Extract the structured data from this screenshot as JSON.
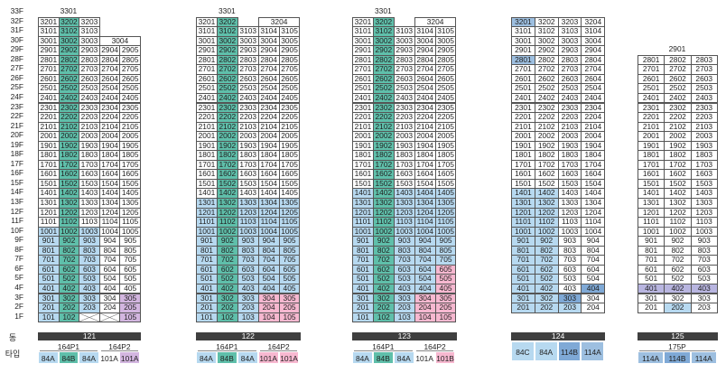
{
  "floors": [
    "33F",
    "32F",
    "31F",
    "30F",
    "29F",
    "28F",
    "27F",
    "26F",
    "25F",
    "24F",
    "23F",
    "22F",
    "21F",
    "20F",
    "19F",
    "18F",
    "17F",
    "16F",
    "15F",
    "14F",
    "13F",
    "12F",
    "11F",
    "10F",
    "9F",
    "8F",
    "7F",
    "6F",
    "5F",
    "4F",
    "3F",
    "2F",
    "1F"
  ],
  "labels": {
    "dong": "동",
    "type": "타입"
  },
  "colors": {
    "teal": "#5fbfaa",
    "lightblue": "#b7d9f0",
    "midblue": "#9dbfe0",
    "pink": "#f7b8d0",
    "purple": "#d3b6e0",
    "steelblue": "#7fa9d6",
    "lavender": "#b8b5e0"
  },
  "buildings": [
    {
      "dong": "121",
      "top_floor": "33F",
      "penthouse": "3301",
      "types": [
        {
          "group": "164P1",
          "cells": [
            {
              "t": "84A",
              "c": "lightblue"
            },
            {
              "t": "84B",
              "c": "teal"
            },
            {
              "t": "84A",
              "c": "lightblue"
            }
          ]
        },
        {
          "group": "164P2",
          "cells": [
            {
              "t": "101A",
              "c": "white"
            },
            {
              "t": "101A",
              "c": "purple"
            }
          ]
        }
      ],
      "rows": [
        [
          "3201",
          "3202",
          "3203"
        ],
        [
          "3101",
          "3102",
          "3103"
        ],
        [
          "3001",
          "3002",
          "3003",
          "3004"
        ],
        [
          "2901",
          "2902",
          "2903",
          "2904",
          "2905"
        ],
        [
          "2801",
          "2802",
          "2803",
          "2804",
          "2805"
        ],
        [
          "2701",
          "2702",
          "2703",
          "2704",
          "2705"
        ],
        [
          "2601",
          "2602",
          "2603",
          "2604",
          "2605"
        ],
        [
          "2501",
          "2502",
          "2503",
          "2504",
          "2505"
        ],
        [
          "2401",
          "2402",
          "2403",
          "2404",
          "2405"
        ],
        [
          "2301",
          "2302",
          "2303",
          "2304",
          "2305"
        ],
        [
          "2201",
          "2202",
          "2203",
          "2204",
          "2205"
        ],
        [
          "2101",
          "2102",
          "2103",
          "2104",
          "2105"
        ],
        [
          "2001",
          "2002",
          "2003",
          "2004",
          "2005"
        ],
        [
          "1901",
          "1902",
          "1903",
          "1904",
          "1905"
        ],
        [
          "1801",
          "1802",
          "1803",
          "1804",
          "1805"
        ],
        [
          "1701",
          "1702",
          "1703",
          "1704",
          "1705"
        ],
        [
          "1601",
          "1602",
          "1603",
          "1604",
          "1605"
        ],
        [
          "1501",
          "1502",
          "1503",
          "1504",
          "1505"
        ],
        [
          "1401",
          "1402",
          "1403",
          "1404",
          "1405"
        ],
        [
          "1301",
          "1302",
          "1303",
          "1304",
          "1305"
        ],
        [
          "1201",
          "1202",
          "1203",
          "1204",
          "1205"
        ],
        [
          "1101",
          "1102",
          "1103",
          "1104",
          "1105"
        ],
        [
          "1001",
          "1002",
          "1003",
          "1004",
          "1005"
        ],
        [
          "901",
          "902",
          "903",
          "904",
          "905"
        ],
        [
          "801",
          "802",
          "803",
          "804",
          "805"
        ],
        [
          "701",
          "702",
          "703",
          "704",
          "705"
        ],
        [
          "601",
          "602",
          "603",
          "604",
          "605"
        ],
        [
          "501",
          "502",
          "503",
          "504",
          "505"
        ],
        [
          "401",
          "402",
          "403",
          "404",
          "405"
        ],
        [
          "301",
          "302",
          "303",
          "304",
          "305"
        ],
        [
          "201",
          "202",
          "203",
          "204",
          "205"
        ],
        [
          "101",
          "102",
          "",
          "",
          "105"
        ]
      ]
    },
    {
      "dong": "122",
      "top_floor": "33F",
      "penthouse": "3301",
      "types": [
        {
          "group": "164P1",
          "cells": [
            {
              "t": "84A",
              "c": "lightblue"
            },
            {
              "t": "84B",
              "c": "teal"
            },
            {
              "t": "84A",
              "c": "lightblue"
            }
          ]
        },
        {
          "group": "164P2",
          "cells": [
            {
              "t": "101A",
              "c": "pink"
            },
            {
              "t": "101A",
              "c": "pink"
            }
          ]
        }
      ],
      "rows": [
        [
          "3201",
          "3202",
          "3204"
        ],
        [
          "3101",
          "3102",
          "3103",
          "3104",
          "3105"
        ],
        [
          "3001",
          "3002",
          "3003",
          "3004",
          "3005"
        ],
        [
          "2901",
          "2902",
          "2903",
          "2904",
          "2905"
        ],
        [
          "2801",
          "2802",
          "2803",
          "2804",
          "2805"
        ],
        [
          "2701",
          "2702",
          "2703",
          "2704",
          "2705"
        ],
        [
          "2601",
          "2602",
          "2603",
          "2604",
          "2605"
        ],
        [
          "2501",
          "2502",
          "2503",
          "2504",
          "2505"
        ],
        [
          "2401",
          "2402",
          "2403",
          "2404",
          "2405"
        ],
        [
          "2301",
          "2302",
          "2303",
          "2304",
          "2305"
        ],
        [
          "2201",
          "2202",
          "2203",
          "2204",
          "2205"
        ],
        [
          "2101",
          "2102",
          "2103",
          "2104",
          "2105"
        ],
        [
          "2001",
          "2002",
          "2003",
          "2004",
          "2005"
        ],
        [
          "1901",
          "1902",
          "1903",
          "1904",
          "1905"
        ],
        [
          "1801",
          "1802",
          "1803",
          "1804",
          "1805"
        ],
        [
          "1701",
          "1702",
          "1703",
          "1704",
          "1705"
        ],
        [
          "1601",
          "1602",
          "1603",
          "1604",
          "1605"
        ],
        [
          "1501",
          "1502",
          "1503",
          "1504",
          "1505"
        ],
        [
          "1401",
          "1402",
          "1403",
          "1404",
          "1405"
        ],
        [
          "1301",
          "1302",
          "1303",
          "1304",
          "1305"
        ],
        [
          "1201",
          "1202",
          "1203",
          "1204",
          "1205"
        ],
        [
          "1101",
          "1102",
          "1103",
          "1104",
          "1105"
        ],
        [
          "1001",
          "1002",
          "1003",
          "1004",
          "1005"
        ],
        [
          "901",
          "902",
          "903",
          "904",
          "905"
        ],
        [
          "801",
          "802",
          "803",
          "804",
          "805"
        ],
        [
          "701",
          "702",
          "703",
          "704",
          "705"
        ],
        [
          "601",
          "602",
          "603",
          "604",
          "605"
        ],
        [
          "501",
          "502",
          "503",
          "504",
          "505"
        ],
        [
          "401",
          "402",
          "403",
          "404",
          "405"
        ],
        [
          "301",
          "302",
          "303",
          "304",
          "305"
        ],
        [
          "201",
          "202",
          "203",
          "204",
          "205"
        ],
        [
          "101",
          "102",
          "103",
          "104",
          "105"
        ]
      ]
    },
    {
      "dong": "123",
      "top_floor": "33F",
      "penthouse": "3301",
      "types": [
        {
          "group": "164P1",
          "cells": [
            {
              "t": "84A",
              "c": "lightblue"
            },
            {
              "t": "84B",
              "c": "teal"
            },
            {
              "t": "84A",
              "c": "lightblue"
            }
          ]
        },
        {
          "group": "164P2",
          "cells": [
            {
              "t": "101A",
              "c": "white"
            },
            {
              "t": "101B",
              "c": "pink"
            }
          ]
        }
      ],
      "rows": [
        [
          "3201",
          "3202",
          "3204"
        ],
        [
          "3101",
          "3102",
          "3103",
          "3104",
          "3105"
        ],
        [
          "3001",
          "3002",
          "3003",
          "3004",
          "3005"
        ],
        [
          "2901",
          "2902",
          "2903",
          "2904",
          "2905"
        ],
        [
          "2801",
          "2802",
          "2803",
          "2804",
          "2805"
        ],
        [
          "2701",
          "2702",
          "2703",
          "2704",
          "2705"
        ],
        [
          "2601",
          "2602",
          "2603",
          "2604",
          "2605"
        ],
        [
          "2501",
          "2502",
          "2503",
          "2504",
          "2505"
        ],
        [
          "2401",
          "2402",
          "2403",
          "2404",
          "2405"
        ],
        [
          "2301",
          "2302",
          "2303",
          "2304",
          "2305"
        ],
        [
          "2201",
          "2202",
          "2203",
          "2204",
          "2205"
        ],
        [
          "2101",
          "2102",
          "2103",
          "2104",
          "2105"
        ],
        [
          "2001",
          "2002",
          "2003",
          "2004",
          "2005"
        ],
        [
          "1901",
          "1902",
          "1903",
          "1904",
          "1905"
        ],
        [
          "1801",
          "1802",
          "1803",
          "1804",
          "1805"
        ],
        [
          "1701",
          "1702",
          "1703",
          "1704",
          "1705"
        ],
        [
          "1601",
          "1602",
          "1603",
          "1604",
          "1605"
        ],
        [
          "1501",
          "1502",
          "1503",
          "1504",
          "1505"
        ],
        [
          "1401",
          "1402",
          "1403",
          "1404",
          "1405"
        ],
        [
          "1301",
          "1302",
          "1303",
          "1304",
          "1305"
        ],
        [
          "1201",
          "1202",
          "1203",
          "1204",
          "1205"
        ],
        [
          "1101",
          "1102",
          "1103",
          "1104",
          "1105"
        ],
        [
          "1001",
          "1002",
          "1003",
          "1004",
          "1005"
        ],
        [
          "901",
          "902",
          "903",
          "904",
          "905"
        ],
        [
          "801",
          "802",
          "803",
          "804",
          "805"
        ],
        [
          "701",
          "702",
          "703",
          "704",
          "705"
        ],
        [
          "601",
          "602",
          "603",
          "604",
          "605"
        ],
        [
          "501",
          "502",
          "503",
          "504",
          "505"
        ],
        [
          "401",
          "402",
          "403",
          "404",
          "405"
        ],
        [
          "301",
          "302",
          "303",
          "304",
          "305"
        ],
        [
          "201",
          "202",
          "203",
          "204",
          "205"
        ],
        [
          "101",
          "102",
          "103",
          "104",
          "105"
        ]
      ]
    },
    {
      "dong": "124",
      "types": [
        {
          "group": "",
          "cells": [
            {
              "t": "84C",
              "c": "lightblue"
            },
            {
              "t": "84A",
              "c": "lightblue"
            },
            {
              "t": "114B",
              "c": "steelblue"
            },
            {
              "t": "114A",
              "c": "midblue"
            }
          ]
        }
      ],
      "rows": [
        [
          "3201",
          "3202",
          "3203",
          "3204"
        ],
        [
          "3101",
          "3102",
          "3103",
          "3104"
        ],
        [
          "3001",
          "3002",
          "3003",
          "3004"
        ],
        [
          "2901",
          "2902",
          "2903",
          "2904"
        ],
        [
          "2801",
          "2802",
          "2803",
          "2804"
        ],
        [
          "2701",
          "2702",
          "2703",
          "2704"
        ],
        [
          "2601",
          "2602",
          "2603",
          "2604"
        ],
        [
          "2501",
          "2502",
          "2503",
          "2504"
        ],
        [
          "2401",
          "2402",
          "2403",
          "2404"
        ],
        [
          "2301",
          "2302",
          "2303",
          "2304"
        ],
        [
          "2201",
          "2202",
          "2203",
          "2204"
        ],
        [
          "2101",
          "2102",
          "2103",
          "2104"
        ],
        [
          "2001",
          "2002",
          "2003",
          "2004"
        ],
        [
          "1901",
          "1902",
          "1903",
          "1904"
        ],
        [
          "1801",
          "1802",
          "1803",
          "1804"
        ],
        [
          "1701",
          "1702",
          "1703",
          "1704"
        ],
        [
          "1601",
          "1602",
          "1603",
          "1604"
        ],
        [
          "1501",
          "1502",
          "1503",
          "1504"
        ],
        [
          "1401",
          "1402",
          "1403",
          "1404"
        ],
        [
          "1301",
          "1302",
          "1303",
          "1304"
        ],
        [
          "1201",
          "1202",
          "1203",
          "1204"
        ],
        [
          "1101",
          "1102",
          "1103",
          "1104"
        ],
        [
          "1001",
          "1002",
          "1003",
          "1004"
        ],
        [
          "901",
          "902",
          "903",
          "904"
        ],
        [
          "801",
          "802",
          "803",
          "804"
        ],
        [
          "701",
          "702",
          "703",
          "704"
        ],
        [
          "601",
          "602",
          "603",
          "604"
        ],
        [
          "501",
          "502",
          "503",
          "504"
        ],
        [
          "401",
          "402",
          "403",
          "404"
        ],
        [
          "301",
          "302",
          "303",
          "304"
        ],
        [
          "201",
          "202",
          "203",
          "204"
        ]
      ]
    },
    {
      "dong": "125",
      "penthouse": "2901",
      "types": [
        {
          "group": "175P",
          "cells": [
            {
              "t": "114A",
              "c": "midblue"
            },
            {
              "t": "114B",
              "c": "steelblue"
            },
            {
              "t": "114A",
              "c": "midblue"
            }
          ]
        }
      ],
      "rows": [
        [
          "2801",
          "2802",
          "2803"
        ],
        [
          "2701",
          "2702",
          "2703"
        ],
        [
          "2601",
          "2602",
          "2603"
        ],
        [
          "2501",
          "2502",
          "2503"
        ],
        [
          "2401",
          "2402",
          "2403"
        ],
        [
          "2301",
          "2302",
          "2303"
        ],
        [
          "2201",
          "2202",
          "2203"
        ],
        [
          "2101",
          "2102",
          "2103"
        ],
        [
          "2001",
          "2002",
          "2003"
        ],
        [
          "1901",
          "1902",
          "1903"
        ],
        [
          "1801",
          "1802",
          "1803"
        ],
        [
          "1701",
          "1702",
          "1703"
        ],
        [
          "1601",
          "1602",
          "1603"
        ],
        [
          "1501",
          "1502",
          "1503"
        ],
        [
          "1401",
          "1402",
          "1403"
        ],
        [
          "1301",
          "1302",
          "1303"
        ],
        [
          "1201",
          "1202",
          "1203"
        ],
        [
          "1101",
          "1102",
          "1103"
        ],
        [
          "1001",
          "1002",
          "1003"
        ],
        [
          "901",
          "902",
          "903"
        ],
        [
          "801",
          "802",
          "803"
        ],
        [
          "701",
          "702",
          "703"
        ],
        [
          "601",
          "602",
          "603"
        ],
        [
          "501",
          "502",
          "503"
        ],
        [
          "401",
          "402",
          "403"
        ],
        [
          "301",
          "302",
          "303"
        ],
        [
          "201",
          "202",
          "203"
        ]
      ]
    }
  ]
}
